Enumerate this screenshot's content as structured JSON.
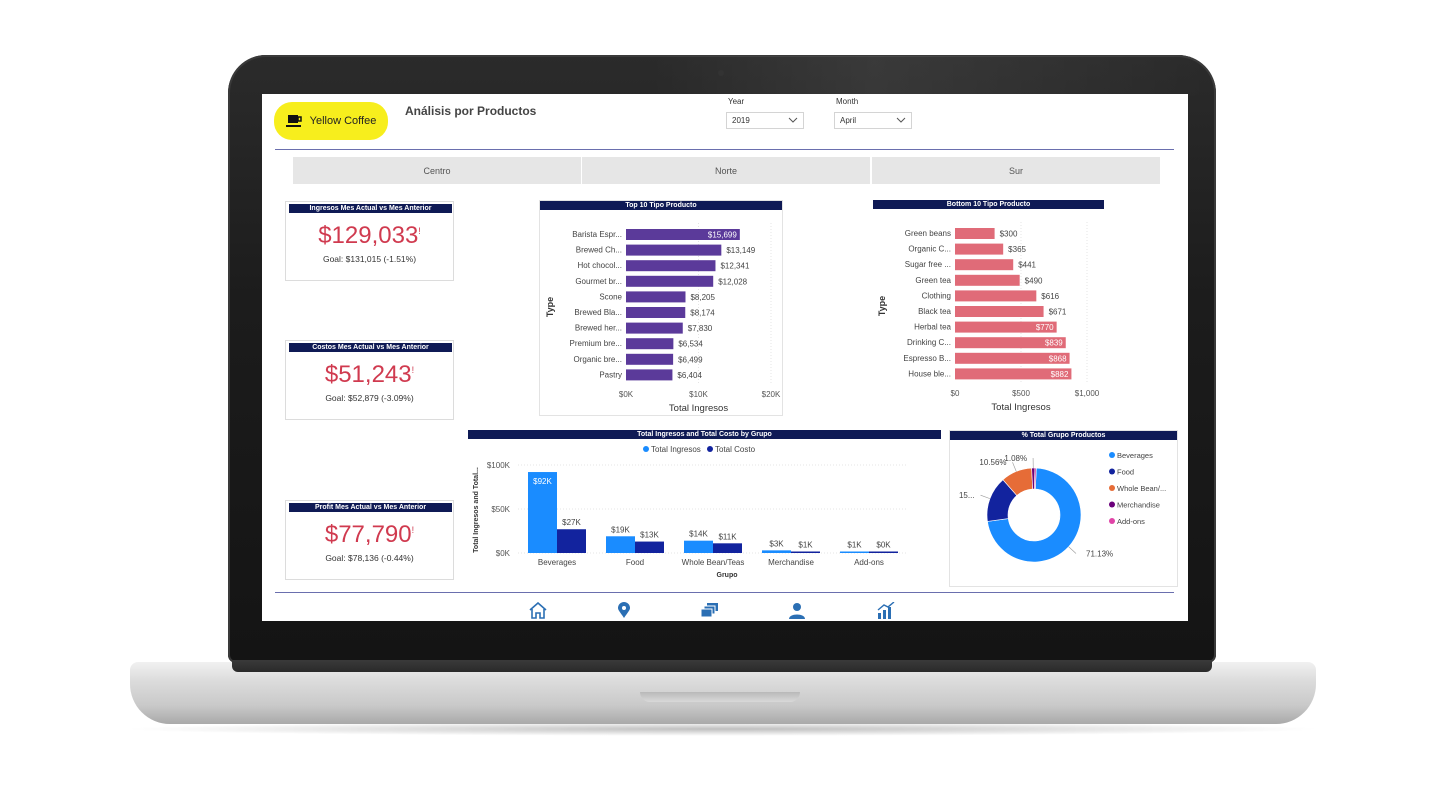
{
  "app": {
    "logo_text": "Yellow Coffee",
    "page_title": "Análisis por Productos"
  },
  "filters": {
    "year_label": "Year",
    "year_value": "2019",
    "month_label": "Month",
    "month_value": "April"
  },
  "regions": [
    "Centro",
    "Norte",
    "Sur"
  ],
  "kpis": [
    {
      "title": "Ingresos Mes Actual vs Mes Anterior",
      "value": "$129,033",
      "flag": "!",
      "goal": "Goal: $131,015 (-1.51%)"
    },
    {
      "title": "Costos Mes Actual vs Mes Anterior",
      "value": "$51,243",
      "flag": "!",
      "goal": "Goal: $52,879 (-3.09%)"
    },
    {
      "title": "Profit Mes Actual vs Mes Anterior",
      "value": "$77,790",
      "flag": "!",
      "goal": "Goal: $78,136 (-0.44%)"
    }
  ],
  "colors": {
    "header": "#0f1a55",
    "kpi_value": "#d03a4f",
    "top_bar": "#5b3a9a",
    "bottom_bar": "#e06b78",
    "ingresos": "#1a8cff",
    "costo": "#12239e",
    "logo_bg": "#f7ee1d"
  },
  "chart_data": [
    {
      "type": "bar",
      "orientation": "horizontal",
      "title": "Top 10 Tipo Producto",
      "xlabel": "Total Ingresos",
      "ylabel": "Type",
      "xlim": [
        0,
        20000
      ],
      "x_ticks": [
        "$0K",
        "$10K",
        "$20K"
      ],
      "categories": [
        "Barista Espr...",
        "Brewed Ch...",
        "Hot chocol...",
        "Gourmet br...",
        "Scone",
        "Brewed Bla...",
        "Brewed her...",
        "Premium bre...",
        "Organic bre...",
        "Pastry"
      ],
      "values": [
        15699,
        13149,
        12341,
        12028,
        8205,
        8174,
        7830,
        6534,
        6499,
        6404
      ],
      "labels": [
        "$15,699",
        "$13,149",
        "$12,341",
        "$12,028",
        "$8,205",
        "$8,174",
        "$7,830",
        "$6,534",
        "$6,499",
        "$6,404"
      ]
    },
    {
      "type": "bar",
      "orientation": "horizontal",
      "title": "Bottom 10 Tipo Producto",
      "xlabel": "Total Ingresos",
      "ylabel": "Type",
      "xlim": [
        0,
        1000
      ],
      "x_ticks": [
        "$0",
        "$500",
        "$1,000"
      ],
      "categories": [
        "Green beans",
        "Organic C...",
        "Sugar free ...",
        "Green tea",
        "Clothing",
        "Black tea",
        "Herbal tea",
        "Drinking C...",
        "Espresso B...",
        "House ble..."
      ],
      "values": [
        300,
        365,
        441,
        490,
        616,
        671,
        770,
        839,
        868,
        882
      ],
      "labels": [
        "$300",
        "$365",
        "$441",
        "$490",
        "$616",
        "$671",
        "$770",
        "$839",
        "$868",
        "$882"
      ]
    },
    {
      "type": "bar",
      "title": "Total Ingresos and Total Costo by Grupo",
      "xlabel": "Grupo",
      "ylabel": "Total Ingresos and Total...",
      "ylim": [
        0,
        100000
      ],
      "y_ticks": [
        "$0K",
        "$50K",
        "$100K"
      ],
      "categories": [
        "Beverages",
        "Food",
        "Whole Bean/Teas",
        "Merchandise",
        "Add-ons"
      ],
      "series": [
        {
          "name": "Total Ingresos",
          "values": [
            92000,
            19000,
            14000,
            3000,
            1000
          ],
          "labels": [
            "$92K",
            "$19K",
            "$14K",
            "$3K",
            "$1K"
          ]
        },
        {
          "name": "Total Costo",
          "values": [
            27000,
            13000,
            11000,
            1000,
            0
          ],
          "labels": [
            "$27K",
            "$13K",
            "$11K",
            "$1K",
            "$0K"
          ]
        }
      ],
      "legend": "top"
    },
    {
      "type": "pie",
      "variant": "donut",
      "title": "% Total Grupo Productos",
      "categories": [
        "Beverages",
        "Food",
        "Whole Bean/...",
        "Merchandise",
        "Add-ons"
      ],
      "values": [
        71.13,
        15.5,
        10.56,
        1.08,
        0.5
      ],
      "labels": [
        "71.13%",
        "15...",
        "10.56%",
        "1.08%",
        ""
      ],
      "colors": [
        "#1a8cff",
        "#12239e",
        "#e66c37",
        "#6b007b",
        "#e044a7"
      ],
      "legend": "right"
    }
  ],
  "nav": [
    "home-icon",
    "location-pin-icon",
    "layers-icon",
    "user-icon",
    "growth-chart-icon"
  ]
}
